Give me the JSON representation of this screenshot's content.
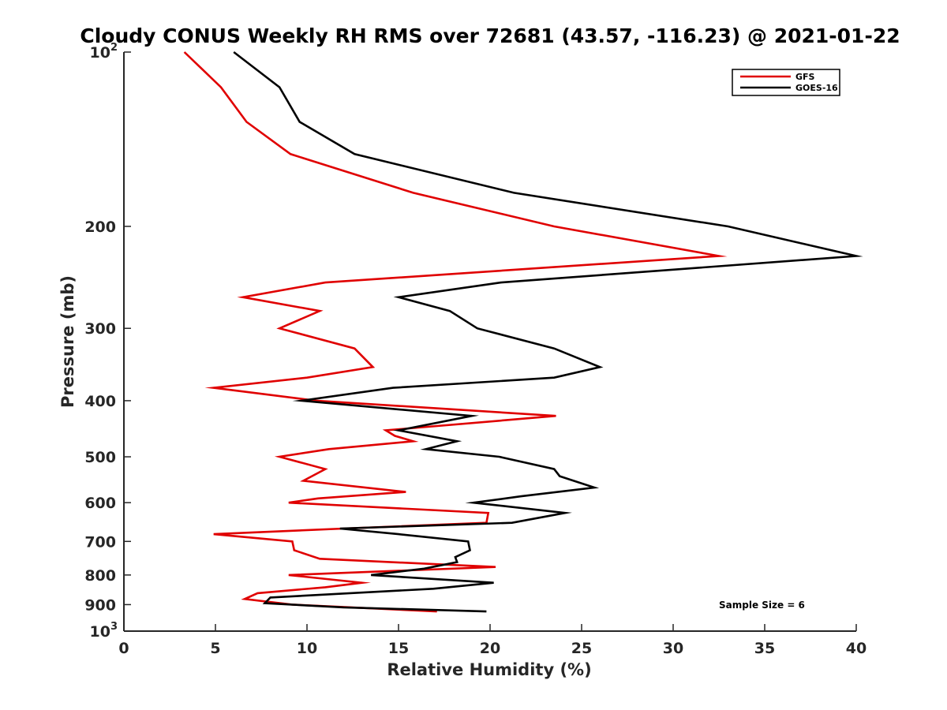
{
  "chart_data": {
    "type": "line",
    "title": "Cloudy CONUS Weekly RH RMS over 72681 (43.57, -116.23) @ 2021-01-22",
    "xlabel": "Relative Humidity (%)",
    "ylabel": "Pressure (mb)",
    "xlim": [
      0,
      40
    ],
    "ylim": [
      100,
      1000
    ],
    "y_scale": "log",
    "y_reversed": true,
    "grid": false,
    "legend_position": "top-right",
    "x_ticks": [
      "0",
      "5",
      "10",
      "15",
      "20",
      "25",
      "30",
      "35",
      "40"
    ],
    "y_ticks": [
      {
        "value": 100,
        "base": "10",
        "exp": "2"
      },
      {
        "value": 200,
        "label": "200"
      },
      {
        "value": 300,
        "label": "300"
      },
      {
        "value": 400,
        "label": "400"
      },
      {
        "value": 500,
        "label": "500"
      },
      {
        "value": 600,
        "label": "600"
      },
      {
        "value": 700,
        "label": "700"
      },
      {
        "value": 800,
        "label": "800"
      },
      {
        "value": 900,
        "label": "900"
      },
      {
        "value": 1000,
        "base": "10",
        "exp": "3"
      }
    ],
    "annotation": "Sample Size = 6",
    "series": [
      {
        "name": "GFS",
        "color": "#e00000",
        "points": [
          {
            "x": 3.3,
            "y": 100
          },
          {
            "x": 5.3,
            "y": 115
          },
          {
            "x": 6.7,
            "y": 132
          },
          {
            "x": 9.1,
            "y": 150
          },
          {
            "x": 15.8,
            "y": 175
          },
          {
            "x": 23.5,
            "y": 200
          },
          {
            "x": 32.5,
            "y": 225
          },
          {
            "x": 11.0,
            "y": 250
          },
          {
            "x": 6.5,
            "y": 265
          },
          {
            "x": 10.7,
            "y": 280
          },
          {
            "x": 8.5,
            "y": 300
          },
          {
            "x": 12.6,
            "y": 325
          },
          {
            "x": 13.6,
            "y": 350
          },
          {
            "x": 10.0,
            "y": 365
          },
          {
            "x": 4.9,
            "y": 380
          },
          {
            "x": 10.5,
            "y": 400
          },
          {
            "x": 23.6,
            "y": 425
          },
          {
            "x": 14.3,
            "y": 450
          },
          {
            "x": 14.8,
            "y": 460
          },
          {
            "x": 15.8,
            "y": 470
          },
          {
            "x": 11.2,
            "y": 485
          },
          {
            "x": 8.5,
            "y": 500
          },
          {
            "x": 11.0,
            "y": 525
          },
          {
            "x": 9.8,
            "y": 550
          },
          {
            "x": 15.4,
            "y": 575
          },
          {
            "x": 10.6,
            "y": 590
          },
          {
            "x": 9.0,
            "y": 600
          },
          {
            "x": 19.9,
            "y": 625
          },
          {
            "x": 19.8,
            "y": 650
          },
          {
            "x": 12.0,
            "y": 665
          },
          {
            "x": 4.9,
            "y": 680
          },
          {
            "x": 9.2,
            "y": 700
          },
          {
            "x": 9.3,
            "y": 725
          },
          {
            "x": 10.7,
            "y": 750
          },
          {
            "x": 20.3,
            "y": 775
          },
          {
            "x": 9.0,
            "y": 800
          },
          {
            "x": 13.0,
            "y": 825
          },
          {
            "x": 11.0,
            "y": 840
          },
          {
            "x": 7.3,
            "y": 860
          },
          {
            "x": 6.6,
            "y": 880
          },
          {
            "x": 9.2,
            "y": 900
          },
          {
            "x": 17.1,
            "y": 925
          }
        ]
      },
      {
        "name": "GOES-16",
        "color": "#000000",
        "points": [
          {
            "x": 6.0,
            "y": 100
          },
          {
            "x": 8.5,
            "y": 115
          },
          {
            "x": 9.6,
            "y": 132
          },
          {
            "x": 12.6,
            "y": 150
          },
          {
            "x": 21.3,
            "y": 175
          },
          {
            "x": 33.0,
            "y": 200
          },
          {
            "x": 40.0,
            "y": 225
          },
          {
            "x": 20.6,
            "y": 250
          },
          {
            "x": 15.0,
            "y": 265
          },
          {
            "x": 17.8,
            "y": 280
          },
          {
            "x": 19.3,
            "y": 300
          },
          {
            "x": 23.5,
            "y": 325
          },
          {
            "x": 26.0,
            "y": 350
          },
          {
            "x": 23.5,
            "y": 365
          },
          {
            "x": 14.7,
            "y": 380
          },
          {
            "x": 9.7,
            "y": 400
          },
          {
            "x": 19.0,
            "y": 425
          },
          {
            "x": 15.0,
            "y": 450
          },
          {
            "x": 18.2,
            "y": 470
          },
          {
            "x": 16.5,
            "y": 485
          },
          {
            "x": 20.5,
            "y": 500
          },
          {
            "x": 23.5,
            "y": 525
          },
          {
            "x": 23.8,
            "y": 540
          },
          {
            "x": 25.7,
            "y": 565
          },
          {
            "x": 21.7,
            "y": 585
          },
          {
            "x": 19.1,
            "y": 600
          },
          {
            "x": 24.1,
            "y": 625
          },
          {
            "x": 21.2,
            "y": 650
          },
          {
            "x": 11.8,
            "y": 665
          },
          {
            "x": 15.0,
            "y": 680
          },
          {
            "x": 18.8,
            "y": 700
          },
          {
            "x": 18.9,
            "y": 725
          },
          {
            "x": 18.1,
            "y": 745
          },
          {
            "x": 18.2,
            "y": 760
          },
          {
            "x": 16.4,
            "y": 780
          },
          {
            "x": 13.5,
            "y": 800
          },
          {
            "x": 20.2,
            "y": 825
          },
          {
            "x": 16.9,
            "y": 845
          },
          {
            "x": 8.0,
            "y": 875
          },
          {
            "x": 7.7,
            "y": 895
          },
          {
            "x": 12.0,
            "y": 910
          },
          {
            "x": 19.8,
            "y": 925
          }
        ]
      }
    ]
  }
}
